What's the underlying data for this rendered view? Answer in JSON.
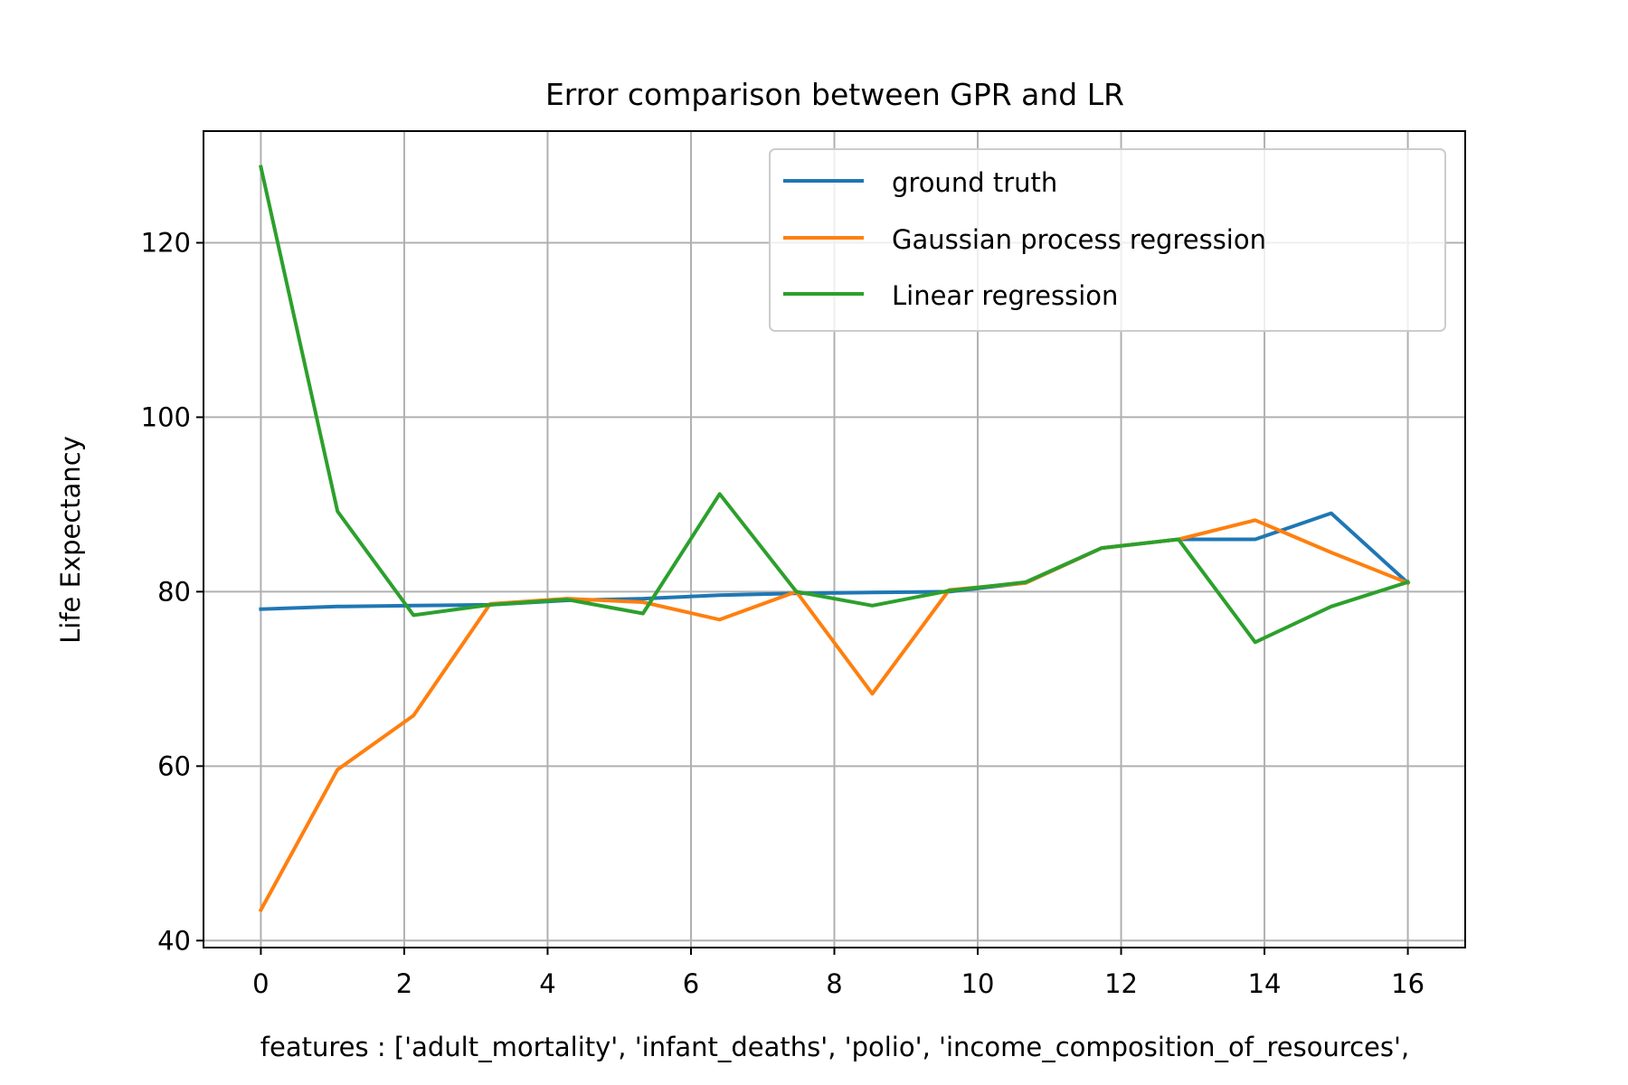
{
  "chart_data": {
    "type": "line",
    "title": "Error comparison between GPR and LR",
    "xlabel": "features : ['adult_mortality', 'infant_deaths', 'polio', 'income_composition_of_resources',",
    "ylabel": "Life Expectancy",
    "xlim": [
      -0.8,
      16.8
    ],
    "ylim": [
      39.2,
      132.8
    ],
    "xticks": [
      0,
      2,
      4,
      6,
      8,
      10,
      12,
      14,
      16
    ],
    "yticks": [
      40,
      60,
      80,
      100,
      120
    ],
    "grid": true,
    "legend_position": "top-right",
    "series": [
      {
        "name": "ground truth",
        "color": "#1f77b4",
        "x": [
          0,
          1.07,
          2.13,
          3.2,
          4.27,
          5.33,
          6.4,
          7.47,
          8.53,
          9.6,
          10.67,
          11.73,
          12.8,
          13.87,
          14.93,
          16
        ],
        "y": [
          78.0,
          78.3,
          78.4,
          78.5,
          79.0,
          79.2,
          79.6,
          79.8,
          79.9,
          80.0,
          81.0,
          85.0,
          86.0,
          86.0,
          89.0,
          81.0
        ]
      },
      {
        "name": "Gaussian process regression",
        "color": "#ff7f0e",
        "x": [
          0,
          1.07,
          2.13,
          3.2,
          4.27,
          5.33,
          6.4,
          7.47,
          8.53,
          9.6,
          10.67,
          11.73,
          12.8,
          13.87,
          14.93,
          16
        ],
        "y": [
          43.5,
          59.6,
          65.8,
          78.6,
          79.2,
          78.8,
          76.8,
          80.0,
          68.3,
          80.2,
          81.0,
          85.0,
          86.0,
          88.2,
          84.5,
          81.0
        ]
      },
      {
        "name": "Linear regression",
        "color": "#2ca02c",
        "x": [
          0,
          1.07,
          2.13,
          3.2,
          4.27,
          5.33,
          6.4,
          7.47,
          8.53,
          9.6,
          10.67,
          11.73,
          12.8,
          13.87,
          14.93,
          16
        ],
        "y": [
          128.7,
          89.2,
          77.3,
          78.5,
          79.1,
          77.5,
          91.2,
          80.0,
          78.4,
          80.1,
          81.1,
          85.0,
          86.0,
          74.2,
          78.3,
          81.1
        ]
      }
    ]
  }
}
